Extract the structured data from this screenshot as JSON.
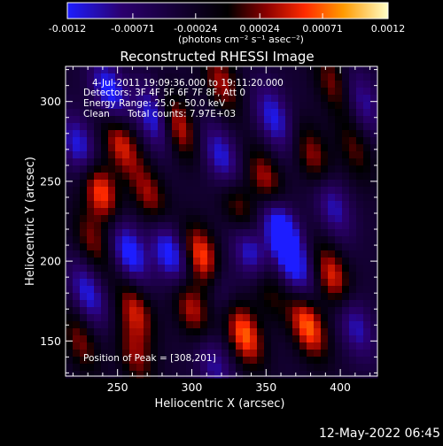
{
  "chart_data": {
    "type": "heatmap",
    "title": "Reconstructed RHESSI Image",
    "xlabel": "Heliocentric X (arcsec)",
    "ylabel": "Heliocentric Y (arcsec)",
    "xlim": [
      215,
      425
    ],
    "ylim": [
      128,
      322
    ],
    "x_ticks": [
      250,
      300,
      350,
      400
    ],
    "y_ticks": [
      150,
      200,
      250,
      300
    ],
    "colorbar": {
      "min": -0.0012,
      "max": 0.0012,
      "ticks": [
        "-0.0012",
        "-0.00071",
        "-0.00024",
        "0.00024",
        "0.00071",
        "0.0012"
      ],
      "unit_label": "(photons cm⁻² s⁻¹ asec⁻²)",
      "colors": [
        "#1d1dff",
        "#2b006e",
        "#000000",
        "#8b0000",
        "#ff2a00",
        "#ff9a00",
        "#ffffc8"
      ]
    },
    "annotations": {
      "time_range": "4-Jul-2011 19:09:36.000 to 19:11:20.000",
      "detectors": "Detectors: 3F 4F 5F 6F 7F 8F, Att 0",
      "energy": "Energy Range: 25.0 - 50.0 keV",
      "method": "Clean",
      "counts": "Total counts: 7.97E+03",
      "peak": "Position of Peak = [308,201]"
    },
    "peak": [
      308,
      201
    ],
    "blobs": [
      {
        "x": 238,
        "y": 245,
        "amp": 0.0011
      },
      {
        "x": 252,
        "y": 275,
        "amp": 0.0009
      },
      {
        "x": 233,
        "y": 212,
        "amp": 0.0006
      },
      {
        "x": 225,
        "y": 150,
        "amp": 0.0006
      },
      {
        "x": 290,
        "y": 285,
        "amp": 0.0009
      },
      {
        "x": 272,
        "y": 240,
        "amp": 0.0007
      },
      {
        "x": 308,
        "y": 201,
        "amp": 0.0012
      },
      {
        "x": 300,
        "y": 170,
        "amp": 0.0008
      },
      {
        "x": 262,
        "y": 170,
        "amp": 0.0008
      },
      {
        "x": 262,
        "y": 140,
        "amp": 0.0006
      },
      {
        "x": 350,
        "y": 250,
        "amp": 0.0008
      },
      {
        "x": 332,
        "y": 232,
        "amp": 0.0007
      },
      {
        "x": 335,
        "y": 155,
        "amp": 0.0011
      },
      {
        "x": 350,
        "y": 185,
        "amp": 0.0006
      },
      {
        "x": 382,
        "y": 265,
        "amp": 0.0007
      },
      {
        "x": 378,
        "y": 160,
        "amp": 0.0011
      },
      {
        "x": 395,
        "y": 190,
        "amp": 0.0009
      },
      {
        "x": 410,
        "y": 270,
        "amp": 0.0005
      },
      {
        "x": 320,
        "y": 312,
        "amp": 0.0007
      },
      {
        "x": 395,
        "y": 312,
        "amp": 0.0006
      },
      {
        "x": 245,
        "y": 305,
        "amp": -0.001
      },
      {
        "x": 225,
        "y": 270,
        "amp": -0.0009
      },
      {
        "x": 230,
        "y": 180,
        "amp": -0.0008
      },
      {
        "x": 258,
        "y": 205,
        "amp": -0.001
      },
      {
        "x": 275,
        "y": 290,
        "amp": -0.0009
      },
      {
        "x": 285,
        "y": 205,
        "amp": -0.001
      },
      {
        "x": 320,
        "y": 265,
        "amp": -0.0008
      },
      {
        "x": 318,
        "y": 185,
        "amp": -0.0006
      },
      {
        "x": 340,
        "y": 205,
        "amp": -0.001
      },
      {
        "x": 355,
        "y": 290,
        "amp": -0.0008
      },
      {
        "x": 360,
        "y": 220,
        "amp": -0.0012
      },
      {
        "x": 370,
        "y": 195,
        "amp": -0.0008
      },
      {
        "x": 395,
        "y": 235,
        "amp": -0.0007
      },
      {
        "x": 410,
        "y": 160,
        "amp": -0.0007
      },
      {
        "x": 415,
        "y": 300,
        "amp": -0.0006
      },
      {
        "x": 315,
        "y": 135,
        "amp": -0.0006
      }
    ]
  },
  "timestamp": "12-May-2022 06:45"
}
